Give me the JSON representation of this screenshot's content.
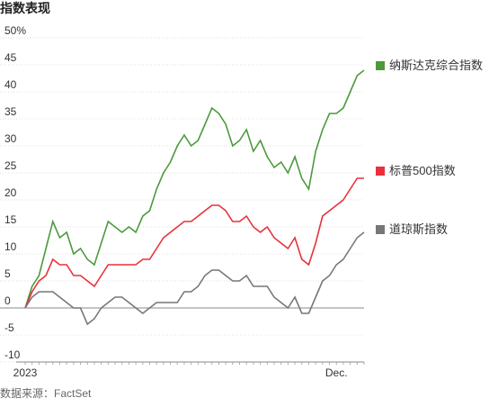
{
  "chart_data": {
    "type": "line",
    "title": "指数表现",
    "source": "数据来源：FactSet",
    "categories": [
      "2023",
      null,
      null,
      null,
      null,
      null,
      null,
      null,
      null,
      null,
      null,
      null,
      null,
      null,
      null,
      null,
      null,
      null,
      null,
      null,
      null,
      null,
      null,
      null,
      null,
      null,
      null,
      null,
      null,
      null,
      null,
      null,
      null,
      null,
      null,
      null,
      null,
      null,
      null,
      null,
      null,
      null,
      null,
      null,
      null,
      "Dec.",
      null,
      null,
      null,
      null
    ],
    "ylim": [
      -10,
      50
    ],
    "yticks": [
      {
        "value": 50,
        "label": "50%"
      },
      45,
      40,
      35,
      30,
      25,
      20,
      15,
      10,
      5,
      0,
      -5,
      -10
    ],
    "grid": true,
    "series": [
      {
        "name": "纳斯达克综合指数",
        "color": "#4c9a3c",
        "values": [
          0,
          4,
          6,
          11,
          16,
          13,
          14,
          10,
          11,
          9,
          8,
          12,
          16,
          15,
          14,
          15,
          14,
          17,
          18,
          22,
          25,
          27,
          30,
          32,
          30,
          31,
          34,
          37,
          36,
          34,
          30,
          31,
          33,
          29,
          31,
          28,
          26,
          27,
          25,
          28,
          24,
          22,
          29,
          33,
          36,
          36,
          37,
          40,
          43,
          44
        ]
      },
      {
        "name": "标普500指数",
        "color": "#e8313a",
        "values": [
          0,
          3,
          5,
          6,
          9,
          8,
          8,
          6,
          6,
          5,
          4,
          6,
          8,
          8,
          8,
          8,
          8,
          9,
          9,
          11,
          13,
          14,
          15,
          16,
          16,
          17,
          18,
          19,
          19,
          18,
          16,
          16,
          17,
          15,
          14,
          15,
          13,
          12,
          11,
          13,
          9,
          8,
          12,
          17,
          18,
          19,
          20,
          22,
          24,
          24
        ]
      },
      {
        "name": "道琼斯指数",
        "color": "#777777",
        "values": [
          0,
          2,
          3,
          3,
          3,
          2,
          1,
          0,
          0,
          -3,
          -2,
          0,
          1,
          2,
          2,
          1,
          0,
          -1,
          0,
          1,
          1,
          1,
          1,
          3,
          3,
          4,
          6,
          7,
          7,
          6,
          5,
          5,
          6,
          4,
          4,
          4,
          2,
          1,
          0,
          2,
          -1,
          -1,
          2,
          5,
          6,
          8,
          9,
          11,
          13,
          14
        ]
      }
    ]
  }
}
